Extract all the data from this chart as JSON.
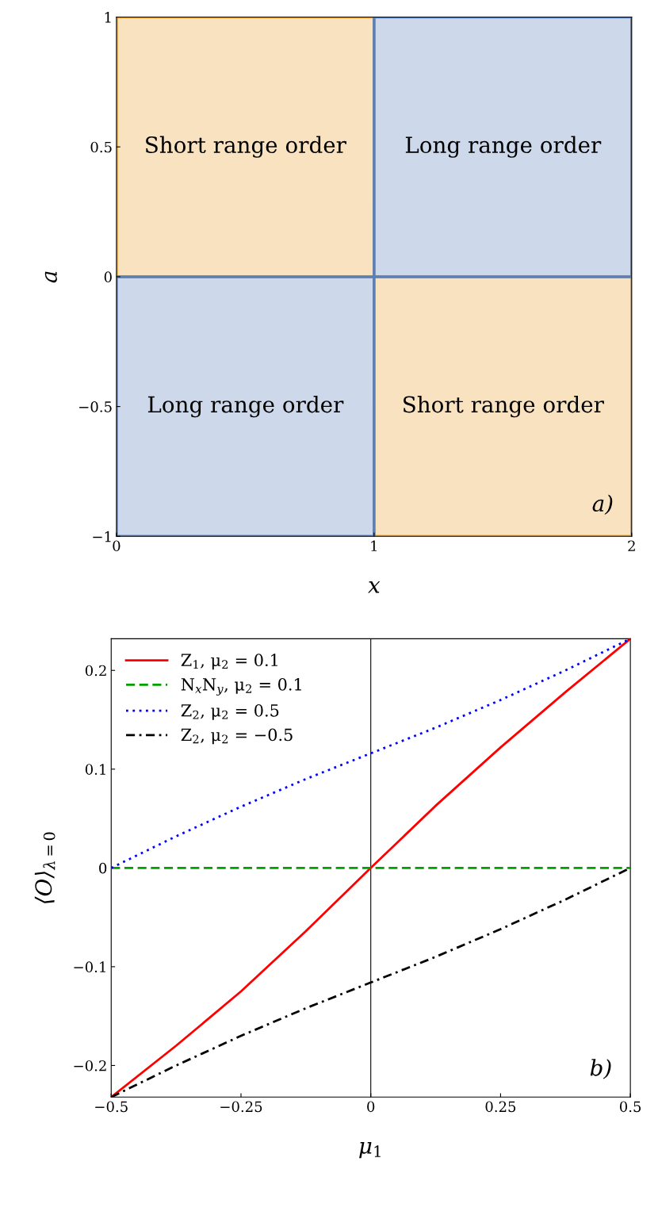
{
  "chart_data": [
    {
      "type": "bar",
      "xlabel": "x",
      "ylabel": "a",
      "xlim": [
        0,
        2
      ],
      "ylim": [
        -1,
        1
      ],
      "xticks": [
        0,
        1,
        2
      ],
      "yticks": [
        {
          "value": -1,
          "label": "−1"
        },
        {
          "value": -0.5,
          "label": "−0.5"
        },
        0,
        0.5,
        1
      ],
      "grid": false,
      "legend": false,
      "x": [
        0.5,
        1.5
      ],
      "series": [
        {
          "color": "#e8a030",
          "base": [
            0,
            -1
          ],
          "values": [
            1,
            1
          ]
        },
        {
          "color": "#5b80b8",
          "base": [
            -1,
            0
          ],
          "values": [
            1,
            1
          ]
        }
      ],
      "annotations": [
        "Short range order",
        "Long range order",
        "Long range order",
        "Short range order",
        "a)"
      ]
    },
    {
      "type": "line",
      "xlabel": "μ$_{1}$",
      "ylabel": "⟨O⟩$_{λ=0}$",
      "xlim": [
        -0.5,
        0.5
      ],
      "ylim": [
        -0.232,
        0.232
      ],
      "xticks": [
        {
          "value": -0.5,
          "label": "−0.5"
        },
        {
          "value": -0.25,
          "label": "−0.25"
        },
        0,
        0.25,
        0.5
      ],
      "yticks": [
        {
          "value": -0.2,
          "label": "−0.2"
        },
        {
          "value": -0.1,
          "label": "−0.1"
        },
        0,
        0.1,
        0.2
      ],
      "grid": false,
      "legend": "top left",
      "marker": "none",
      "x": [
        -0.5,
        -0.375,
        -0.25,
        -0.125,
        0,
        0.125,
        0.25,
        0.375,
        0.5
      ],
      "series": [
        {
          "name": "Z$_{1}$, μ$_{2}$ = 0.1",
          "color": "#ff0000",
          "line_style": "solid",
          "values": [
            -0.232,
            -0.18,
            -0.125,
            -0.064,
            0,
            0.063,
            0.122,
            0.178,
            0.232
          ]
        },
        {
          "name": "N$_{x}$N$_{y}$, μ$_{2}$ = 0.1",
          "color": "#00a000",
          "line_style": "dashed",
          "values": [
            0,
            0,
            0,
            0,
            0,
            0,
            0,
            0,
            0
          ]
        },
        {
          "name": "Z$_{2}$, μ$_{2}$ = 0.5",
          "color": "#0000ff",
          "line_style": "dotted",
          "values": [
            0,
            0.032,
            0.062,
            0.09,
            0.116,
            0.142,
            0.17,
            0.2,
            0.232
          ]
        },
        {
          "name": "Z$_{2}$, μ$_{2}$ = −0.5",
          "color": "#000000",
          "line_style": "dashdot",
          "values": [
            -0.232,
            -0.2,
            -0.17,
            -0.142,
            -0.116,
            -0.09,
            -0.062,
            -0.032,
            0
          ]
        }
      ],
      "ref_lines": [
        {
          "axis": "x",
          "value": 0,
          "color": "#000000",
          "line_style": "solid"
        }
      ],
      "annotations": [
        "b)"
      ]
    }
  ]
}
